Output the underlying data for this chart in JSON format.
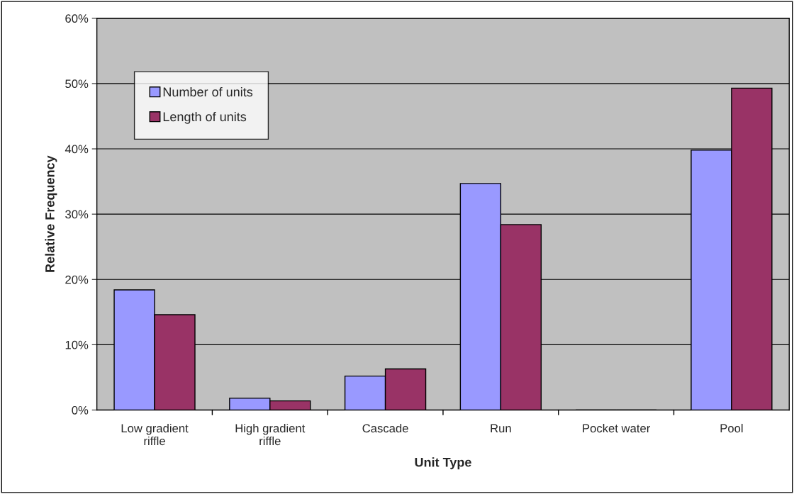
{
  "chart_data": {
    "type": "bar",
    "xlabel": "Unit Type",
    "ylabel": "Relative Frequency",
    "categories": [
      "Low gradient riffle",
      "High gradient riffle",
      "Cascade",
      "Run",
      "Pocket water",
      "Pool"
    ],
    "series": [
      {
        "name": "Number of units",
        "color": "#9999ff",
        "values": [
          18.4,
          1.8,
          5.2,
          34.7,
          0,
          39.8
        ]
      },
      {
        "name": "Length of units",
        "color": "#993366",
        "values": [
          14.6,
          1.4,
          6.3,
          28.4,
          0,
          49.3
        ]
      }
    ],
    "ylim": [
      0,
      60
    ],
    "yticks": [
      {
        "value": 0,
        "label": "0%"
      },
      {
        "value": 10,
        "label": "10%"
      },
      {
        "value": 20,
        "label": "20%"
      },
      {
        "value": 30,
        "label": "30%"
      },
      {
        "value": 40,
        "label": "40%"
      },
      {
        "value": 50,
        "label": "50%"
      },
      {
        "value": 60,
        "label": "60%"
      }
    ],
    "grid": "y",
    "legend": "top left"
  }
}
